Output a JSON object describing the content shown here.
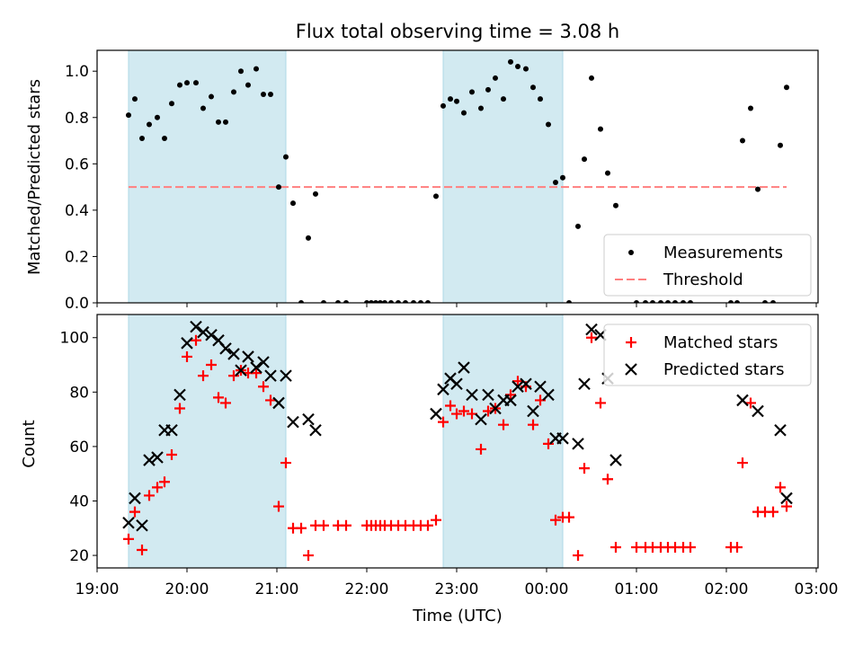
{
  "title": "Flux total observing time = 3.08 h",
  "colors": {
    "measurement": "#000000",
    "threshold": "#ff7f7f",
    "matched": "#ff0000",
    "predicted": "#000000",
    "shade": "#add8e6"
  },
  "chart_data": [
    {
      "type": "scatter",
      "ylabel": "Matched/Predicted stars",
      "xlabel": "",
      "ylim": [
        0,
        1.09
      ],
      "xlim": [
        19.0,
        27.02
      ],
      "yticks": [
        0.0,
        0.2,
        0.4,
        0.6,
        0.8,
        1.0
      ],
      "ytick_labels": [
        "0.0",
        "0.2",
        "0.4",
        "0.6",
        "0.8",
        "1.0"
      ],
      "shaded_x_ranges": [
        [
          19.35,
          21.1
        ],
        [
          22.85,
          24.18
        ]
      ],
      "legend": {
        "position": "lower-right",
        "entries": [
          "Measurements",
          "Threshold"
        ]
      },
      "threshold": {
        "name": "Threshold",
        "y": 0.5,
        "x": [
          19.35,
          26.67
        ]
      },
      "series": [
        {
          "name": "Measurements",
          "marker": "dot",
          "x": [
            19.35,
            19.42,
            19.5,
            19.58,
            19.67,
            19.75,
            19.83,
            19.92,
            20.0,
            20.1,
            20.18,
            20.27,
            20.35,
            20.43,
            20.52,
            20.6,
            20.68,
            20.77,
            20.85,
            20.93,
            21.02,
            21.1,
            21.18,
            21.27,
            21.35,
            21.43,
            21.52,
            21.68,
            21.77,
            22.0,
            22.05,
            22.1,
            22.15,
            22.2,
            22.27,
            22.35,
            22.43,
            22.52,
            22.6,
            22.68,
            22.77,
            22.85,
            22.93,
            23.0,
            23.08,
            23.17,
            23.27,
            23.35,
            23.43,
            23.52,
            23.6,
            23.68,
            23.77,
            23.85,
            23.93,
            24.02,
            24.1,
            24.18,
            24.25,
            24.35,
            24.42,
            24.5,
            24.6,
            24.68,
            24.77,
            25.0,
            25.1,
            25.18,
            25.27,
            25.35,
            25.43,
            25.52,
            25.6,
            26.05,
            26.12,
            26.18,
            26.27,
            26.35,
            26.43,
            26.52,
            26.6,
            26.67
          ],
          "y": [
            0.81,
            0.88,
            0.71,
            0.77,
            0.8,
            0.71,
            0.86,
            0.94,
            0.95,
            0.95,
            0.84,
            0.89,
            0.78,
            0.78,
            0.91,
            1.0,
            0.94,
            1.01,
            0.9,
            0.9,
            0.5,
            0.63,
            0.43,
            0.0,
            0.28,
            0.47,
            0.0,
            0.0,
            0.0,
            0.0,
            0.0,
            0.0,
            0.0,
            0.0,
            0.0,
            0.0,
            0.0,
            0.0,
            0.0,
            0.0,
            0.46,
            0.85,
            0.88,
            0.87,
            0.82,
            0.91,
            0.84,
            0.92,
            0.97,
            0.88,
            1.04,
            1.02,
            1.01,
            0.93,
            0.88,
            0.77,
            0.52,
            0.54,
            0.0,
            0.33,
            0.62,
            0.97,
            0.75,
            0.56,
            0.42,
            0.0,
            0.0,
            0.0,
            0.0,
            0.0,
            0.0,
            0.0,
            0.0,
            0.0,
            0.0,
            0.7,
            0.84,
            0.49,
            0.0,
            0.0,
            0.68,
            0.93
          ]
        }
      ]
    },
    {
      "type": "scatter",
      "ylabel": "Count",
      "xlabel": "Time (UTC)",
      "ylim": [
        15.4,
        108.5
      ],
      "xlim": [
        19.0,
        27.02
      ],
      "yticks": [
        20,
        40,
        60,
        80,
        100
      ],
      "ytick_labels": [
        "20",
        "40",
        "60",
        "80",
        "100"
      ],
      "xticks": [
        19,
        20,
        21,
        22,
        23,
        24,
        25,
        26,
        27
      ],
      "xtick_labels": [
        "19:00",
        "20:00",
        "21:00",
        "22:00",
        "23:00",
        "00:00",
        "01:00",
        "02:00",
        "03:00"
      ],
      "shaded_x_ranges": [
        [
          19.35,
          21.1
        ],
        [
          22.85,
          24.18
        ]
      ],
      "legend": {
        "position": "top-right",
        "entries": [
          "Matched stars",
          "Predicted stars"
        ]
      },
      "series": [
        {
          "name": "Matched stars",
          "marker": "plus",
          "x": [
            19.35,
            19.42,
            19.5,
            19.58,
            19.67,
            19.75,
            19.83,
            19.92,
            20.0,
            20.1,
            20.18,
            20.27,
            20.35,
            20.43,
            20.52,
            20.6,
            20.68,
            20.77,
            20.85,
            20.93,
            21.02,
            21.1,
            21.18,
            21.27,
            21.35,
            21.43,
            21.52,
            21.68,
            21.77,
            22.0,
            22.05,
            22.1,
            22.15,
            22.2,
            22.27,
            22.35,
            22.43,
            22.52,
            22.6,
            22.68,
            22.77,
            22.85,
            22.93,
            23.0,
            23.08,
            23.17,
            23.27,
            23.35,
            23.43,
            23.52,
            23.6,
            23.68,
            23.77,
            23.85,
            23.93,
            24.02,
            24.1,
            24.18,
            24.25,
            24.35,
            24.42,
            24.5,
            24.6,
            24.68,
            24.77,
            25.0,
            25.1,
            25.18,
            25.27,
            25.35,
            25.43,
            25.52,
            25.6,
            26.05,
            26.12,
            26.18,
            26.27,
            26.35,
            26.43,
            26.52,
            26.6,
            26.67
          ],
          "y": [
            26,
            36,
            22,
            42,
            45,
            47,
            57,
            74,
            93,
            99,
            86,
            90,
            78,
            76,
            86,
            88,
            87,
            87,
            82,
            77,
            38,
            54,
            30,
            30,
            20,
            31,
            31,
            31,
            31,
            31,
            31,
            31,
            31,
            31,
            31,
            31,
            31,
            31,
            31,
            31,
            33,
            69,
            75,
            72,
            73,
            72,
            59,
            73,
            74,
            68,
            79,
            84,
            82,
            68,
            77,
            61,
            33,
            34,
            34,
            20,
            52,
            100,
            76,
            48,
            23,
            23,
            23,
            23,
            23,
            23,
            23,
            23,
            23,
            23,
            23,
            54,
            76,
            36,
            36,
            36,
            45,
            38
          ]
        },
        {
          "name": "Predicted stars",
          "marker": "x",
          "x": [
            19.35,
            19.42,
            19.5,
            19.58,
            19.67,
            19.75,
            19.83,
            19.92,
            20.0,
            20.1,
            20.18,
            20.27,
            20.35,
            20.43,
            20.52,
            20.6,
            20.68,
            20.77,
            20.85,
            20.93,
            21.02,
            21.1,
            21.18,
            21.35,
            21.43,
            22.77,
            22.85,
            22.93,
            23.0,
            23.08,
            23.17,
            23.27,
            23.35,
            23.43,
            23.52,
            23.6,
            23.68,
            23.77,
            23.85,
            23.93,
            24.02,
            24.1,
            24.18,
            24.35,
            24.42,
            24.5,
            24.6,
            24.68,
            24.77,
            26.18,
            26.35,
            26.6,
            26.67
          ],
          "y": [
            32,
            41,
            31,
            55,
            56,
            66,
            66,
            79,
            98,
            104,
            102,
            101,
            99,
            96,
            94,
            88,
            93,
            89,
            91,
            86,
            76,
            86,
            69,
            70,
            66,
            72,
            81,
            85,
            83,
            89,
            79,
            70,
            79,
            74,
            77,
            77,
            82,
            83,
            73,
            82,
            79,
            63,
            63,
            61,
            83,
            103,
            101,
            85,
            55,
            77,
            73,
            66,
            41
          ]
        }
      ]
    }
  ]
}
